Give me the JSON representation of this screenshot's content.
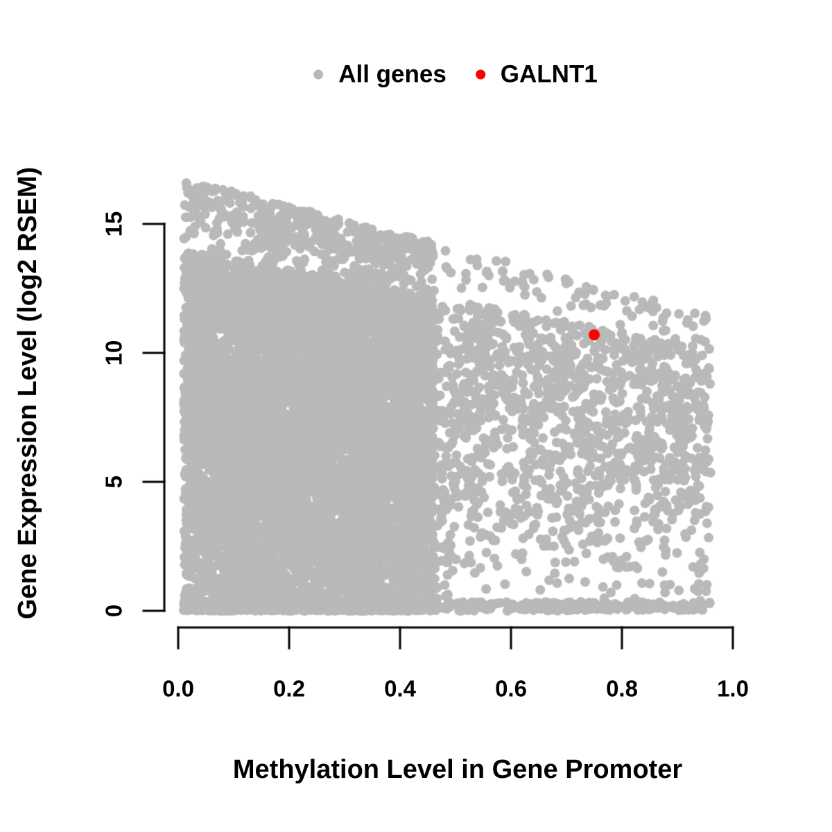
{
  "figure": {
    "background": "#ffffff",
    "text_color": "#000000"
  },
  "legend": {
    "position": "top-center",
    "items": [
      {
        "label": "All genes",
        "color": "#b9b9b9",
        "marker": "dot"
      },
      {
        "label": "GALNT1",
        "color": "#ff0000",
        "marker": "dot"
      }
    ]
  },
  "chart_data": {
    "type": "scatter",
    "title": "",
    "xlabel": "Methylation Level in Gene Promoter",
    "ylabel": "Gene Expression Level (log2 RSEM)",
    "xlim": [
      0.0,
      1.0
    ],
    "ylim": [
      0,
      15
    ],
    "x_ticks": [
      0.0,
      0.2,
      0.4,
      0.6,
      0.8,
      1.0
    ],
    "x_tick_labels": [
      "0.0",
      "0.2",
      "0.4",
      "0.6",
      "0.8",
      "1.0"
    ],
    "y_ticks": [
      0,
      5,
      10,
      15
    ],
    "y_tick_labels": [
      "0",
      "5",
      "10",
      "15"
    ],
    "grid": false,
    "legend_position": "top",
    "series": [
      {
        "name": "All genes",
        "color": "#b9b9b9",
        "kind": "point-cloud",
        "marker_radius_px": 7,
        "n_points": 11000,
        "seed": 7,
        "distribution": {
          "x_min": 0.01,
          "x_max": 0.96,
          "w_left": 0.78,
          "w_right": 0.13,
          "left_max": 0.46,
          "right_min": 0.4,
          "top_intercept": 16.8,
          "top_slope": -5.5,
          "cap_intercept": 14.0,
          "cap_slope": -4.0,
          "w_bottom": 0.13,
          "bottom_height": 0.35,
          "exp_left": 0.85,
          "exp_right": 0.55,
          "w_tail": 0.05,
          "y_max": 16.9
        }
      },
      {
        "name": "GALNT1",
        "color": "#ff0000",
        "kind": "highlight-point",
        "marker_radius_px": 8,
        "points": [
          [
            0.75,
            10.7
          ]
        ]
      }
    ]
  }
}
